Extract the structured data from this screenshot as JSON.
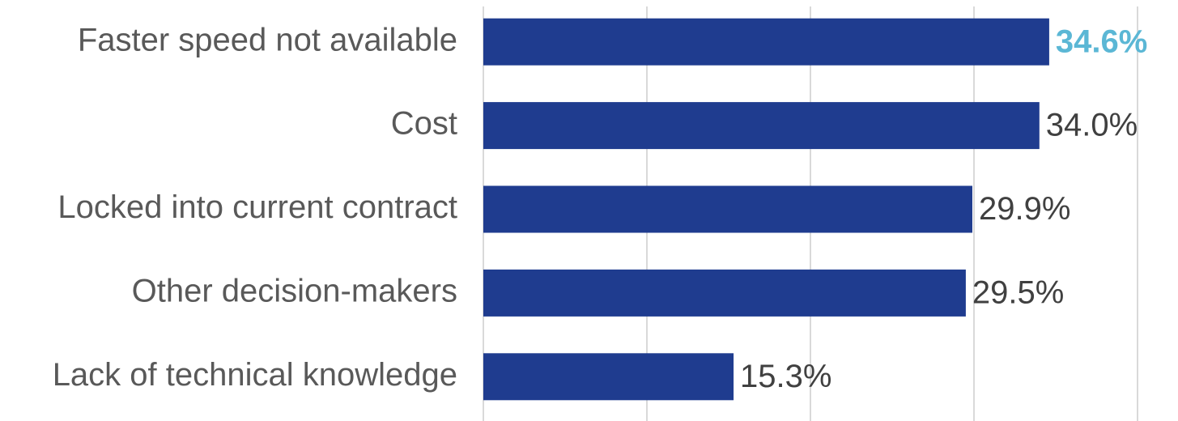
{
  "chart_data": {
    "type": "bar",
    "orientation": "horizontal",
    "categories": [
      "Faster speed not available",
      "Cost",
      "Locked into current contract",
      "Other decision-makers",
      "Lack of technical knowledge"
    ],
    "values": [
      34.6,
      34.0,
      29.9,
      29.5,
      15.3
    ],
    "value_labels": [
      "34.6%",
      "34.0%",
      "29.9%",
      "29.5%",
      "15.3%"
    ],
    "value_label_colors": [
      "#5bb7d5",
      "#404040",
      "#404040",
      "#404040",
      "#404040"
    ],
    "color": "#1f3c8f",
    "xlim": [
      0,
      40
    ],
    "xticks": [
      0,
      10,
      20,
      30,
      40
    ],
    "grid": true
  }
}
